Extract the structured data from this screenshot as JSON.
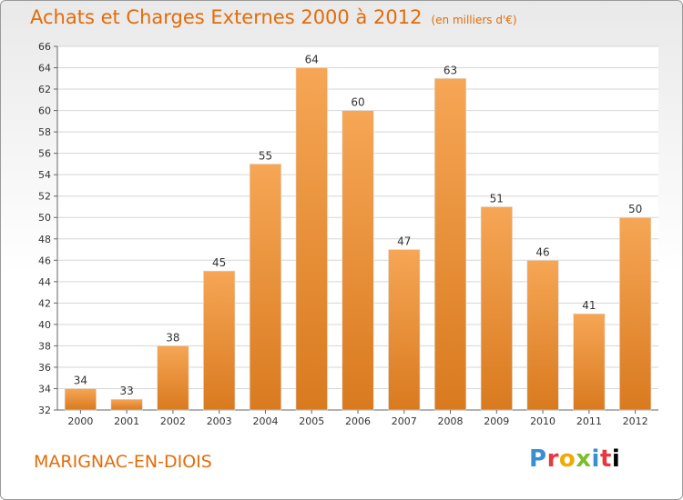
{
  "chart_data": {
    "type": "bar",
    "title": "Achats et Charges Externes 2000 à 2012",
    "unit_label": "(en milliers d'€)",
    "categories": [
      "2000",
      "2001",
      "2002",
      "2003",
      "2004",
      "2005",
      "2006",
      "2007",
      "2008",
      "2009",
      "2010",
      "2011",
      "2012"
    ],
    "values": [
      34,
      33,
      38,
      45,
      55,
      64,
      60,
      47,
      63,
      51,
      46,
      41,
      50
    ],
    "ylim": [
      32,
      66
    ],
    "yticks": [
      32,
      34,
      36,
      38,
      40,
      42,
      44,
      46,
      48,
      50,
      52,
      54,
      56,
      58,
      60,
      62,
      64,
      66
    ],
    "grid": true,
    "xlabel": "",
    "ylabel": "",
    "colors": {
      "bar_top": "#f6a655",
      "bar_bottom": "#d97a1f",
      "text_accent": "#e36c0a"
    }
  },
  "footer": {
    "commune": "MARIGNAC-EN-DIOIS",
    "logo_text": "Proxiti"
  }
}
